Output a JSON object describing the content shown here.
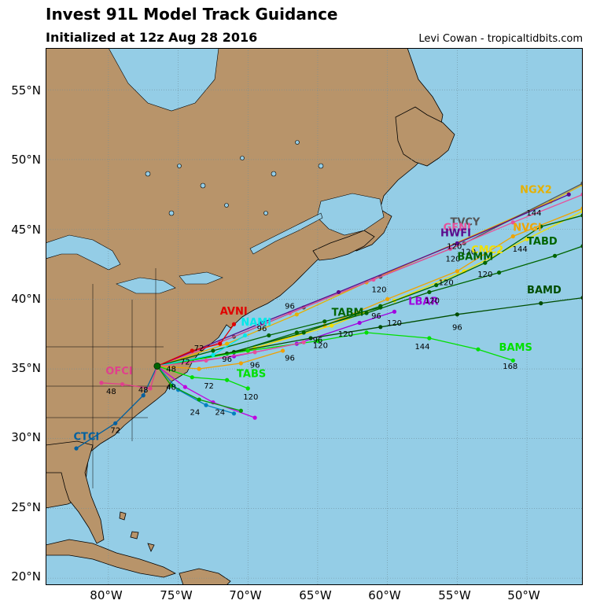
{
  "header": {
    "title": "Invest 91L Model Track Guidance",
    "subtitle": "Initialized at 12z Aug 28 2016",
    "credit": "Levi Cowan - tropicaltidbits.com"
  },
  "axes": {
    "lat_labels": [
      "55°N",
      "50°N",
      "45°N",
      "40°N",
      "35°N",
      "30°N",
      "25°N",
      "20°N"
    ],
    "lon_labels": [
      "80°W",
      "75°W",
      "70°W",
      "65°W",
      "60°W",
      "55°W",
      "50°W"
    ]
  },
  "colors": {
    "ocean": "#94cde6",
    "land": "#b8946a",
    "coast": "#000000",
    "grid": "#6f8f9c"
  },
  "chart_data": {
    "type": "map",
    "map_extent": {
      "lon": [
        -84.5,
        -46.0
      ],
      "lat": [
        19.5,
        58.0
      ]
    },
    "grid": true,
    "lat_ticks": [
      55,
      50,
      45,
      40,
      35,
      30,
      25,
      20
    ],
    "lon_ticks": [
      -80,
      -75,
      -70,
      -65,
      -60,
      -55,
      -50
    ],
    "origin": {
      "lon": -76.5,
      "lat": 35.2
    },
    "series": [
      {
        "name": "NGX2",
        "color": "#e6b000",
        "points": [
          [
            -76.5,
            35.2
          ],
          [
            -71.5,
            36.8
          ],
          [
            -66.5,
            38.9
          ],
          [
            -61.5,
            41.2
          ],
          [
            -48.3,
            47.0
          ],
          [
            -46.0,
            48.2
          ]
        ],
        "label": {
          "text": "NGX2",
          "lon": -50.5,
          "lat": 47.6
        },
        "hours": [
          {
            "text": "144",
            "lon": -49.5,
            "lat": 46.0
          }
        ]
      },
      {
        "name": "TVCY",
        "color": "#555555",
        "points": [
          [
            -76.5,
            35.2
          ],
          [
            -71.0,
            37.3
          ],
          [
            -66.0,
            39.4
          ],
          [
            -60.5,
            41.6
          ],
          [
            -54.5,
            44.0
          ],
          [
            -46.0,
            48.3
          ]
        ],
        "label": {
          "text": "TVCY",
          "lon": -55.5,
          "lat": 45.3
        },
        "hours": [
          {
            "text": "120",
            "lon": -54.2,
            "lat": 43.2
          }
        ]
      },
      {
        "name": "GFNI",
        "color": "#e8509a",
        "points": [
          [
            -76.5,
            35.2
          ],
          [
            -72.0,
            36.9
          ],
          [
            -67.0,
            39.0
          ],
          [
            -61.0,
            41.4
          ],
          [
            -55.5,
            43.6
          ],
          [
            -51.0,
            45.5
          ],
          [
            -46.0,
            47.5
          ]
        ],
        "label": {
          "text": "GFNI",
          "lon": -56.0,
          "lat": 44.9
        },
        "hours": []
      },
      {
        "name": "HWFI",
        "color": "#5a0a8c",
        "points": [
          [
            -76.5,
            35.2
          ],
          [
            -69.0,
            38.3
          ],
          [
            -63.5,
            40.5
          ],
          [
            -55.0,
            44.0
          ],
          [
            -47.0,
            47.5
          ]
        ],
        "label": {
          "text": "HWFI",
          "lon": -56.2,
          "lat": 44.5
        },
        "hours": [
          {
            "text": "120",
            "lon": -55.3,
            "lat": 42.7
          }
        ]
      },
      {
        "name": "NVGI",
        "color": "#f0a400",
        "points": [
          [
            -76.5,
            35.2
          ],
          [
            -70.0,
            36.3
          ],
          [
            -64.5,
            38.1
          ],
          [
            -60.0,
            40.0
          ],
          [
            -55.0,
            42.0
          ],
          [
            -51.0,
            44.5
          ],
          [
            -46.0,
            46.5
          ]
        ],
        "label": {
          "text": "NVGI",
          "lon": -51.0,
          "lat": 44.9
        },
        "hours": [
          {
            "text": "144",
            "lon": -50.5,
            "lat": 43.4
          }
        ]
      },
      {
        "name": "CMC2",
        "color": "#f0e000",
        "points": [
          [
            -76.5,
            35.2
          ],
          [
            -69.5,
            36.5
          ],
          [
            -64.0,
            38.1
          ],
          [
            -59.5,
            39.9
          ],
          [
            -54.5,
            42.0
          ],
          [
            -50.0,
            44.3
          ],
          [
            -46.0,
            46.3
          ]
        ],
        "label": {
          "text": "CMC2",
          "lon": -54.0,
          "lat": 43.3
        },
        "hours": []
      },
      {
        "name": "TABD",
        "color": "#006400",
        "points": [
          [
            -76.5,
            35.2
          ],
          [
            -71.5,
            36.1
          ],
          [
            -66.0,
            37.6
          ],
          [
            -60.5,
            39.5
          ],
          [
            -56.5,
            41.0
          ],
          [
            -53.0,
            42.6
          ],
          [
            -49.0,
            45.2
          ],
          [
            -46.0,
            46.0
          ]
        ],
        "label": {
          "text": "TABD",
          "lon": -50.0,
          "lat": 43.9
        },
        "hours": [
          {
            "text": "120",
            "lon": -53.0,
            "lat": 41.6
          }
        ]
      },
      {
        "name": "BAMM",
        "color": "#006400",
        "points": [
          [
            -76.5,
            35.2
          ],
          [
            -71.0,
            36.2
          ],
          [
            -66.5,
            37.6
          ],
          [
            -61.5,
            39.0
          ],
          [
            -57.0,
            40.5
          ],
          [
            -52.0,
            41.9
          ],
          [
            -48.0,
            43.1
          ],
          [
            -46.0,
            43.8
          ]
        ],
        "label": {
          "text": "BAMM",
          "lon": -55.0,
          "lat": 42.8
        },
        "hours": [
          {
            "text": "120",
            "lon": -55.8,
            "lat": 41.0
          }
        ]
      },
      {
        "name": "LBAR",
        "color": "#a000e0",
        "points": [
          [
            -76.5,
            35.2
          ],
          [
            -71.0,
            35.9
          ],
          [
            -66.5,
            36.8
          ],
          [
            -62.0,
            38.3
          ],
          [
            -59.5,
            39.1
          ]
        ],
        "label": {
          "text": "LBAR",
          "lon": -58.5,
          "lat": 39.6
        },
        "hours": [
          {
            "text": "120",
            "lon": -59.5,
            "lat": 38.1
          }
        ]
      },
      {
        "name": "TABM",
        "color": "#006400",
        "points": [
          [
            -76.5,
            35.2
          ],
          [
            -72.5,
            36.3
          ],
          [
            -68.5,
            37.4
          ],
          [
            -64.5,
            38.4
          ],
          [
            -60.5,
            39.4
          ]
        ],
        "label": {
          "text": "TABM",
          "lon": -64.0,
          "lat": 38.8
        },
        "hours": [
          {
            "text": "120",
            "lon": -63.0,
            "lat": 37.3
          }
        ]
      },
      {
        "name": "BAMD",
        "color": "#004d00",
        "points": [
          [
            -76.5,
            35.2
          ],
          [
            -71.0,
            36.2
          ],
          [
            -65.5,
            37.2
          ],
          [
            -60.5,
            38.0
          ],
          [
            -55.0,
            38.9
          ],
          [
            -49.0,
            39.7
          ],
          [
            -46.0,
            40.1
          ]
        ],
        "label": {
          "text": "BAMD",
          "lon": -50.0,
          "lat": 40.4
        },
        "hours": [
          {
            "text": "96",
            "lon": -55.0,
            "lat": 37.8
          }
        ]
      },
      {
        "name": "BAMS",
        "color": "#00e000",
        "points": [
          [
            -76.5,
            35.2
          ],
          [
            -70.0,
            36.3
          ],
          [
            -65.0,
            37.0
          ],
          [
            -61.5,
            37.6
          ],
          [
            -57.0,
            37.2
          ],
          [
            -53.5,
            36.4
          ],
          [
            -51.0,
            35.6
          ]
        ],
        "label": {
          "text": "BAMS",
          "lon": -52.0,
          "lat": 36.3
        },
        "hours": [
          {
            "text": "144",
            "lon": -57.5,
            "lat": 36.4
          },
          {
            "text": "168",
            "lon": -51.2,
            "lat": 35.0
          }
        ]
      },
      {
        "name": "AVNI",
        "color": "#e00000",
        "points": [
          [
            -76.5,
            35.2
          ],
          [
            -74.0,
            36.3
          ],
          [
            -72.0,
            36.8
          ],
          [
            -71.0,
            38.2
          ]
        ],
        "label": {
          "text": "AVNI",
          "lon": -72.0,
          "lat": 38.9
        },
        "hours": [
          {
            "text": "72",
            "lon": -73.5,
            "lat": 36.3
          }
        ]
      },
      {
        "name": "NAMI",
        "color": "#00e8e8",
        "points": [
          [
            -76.5,
            35.2
          ],
          [
            -72.5,
            36.0
          ],
          [
            -70.2,
            37.4
          ]
        ],
        "label": {
          "text": "NAMI",
          "lon": -70.5,
          "lat": 38.1
        },
        "hours": []
      },
      {
        "name": "TABS",
        "color": "#00e000",
        "points": [
          [
            -76.5,
            35.2
          ],
          [
            -74.0,
            34.4
          ],
          [
            -71.5,
            34.2
          ],
          [
            -70.0,
            33.6
          ]
        ],
        "label": {
          "text": "TABS",
          "lon": -70.8,
          "lat": 34.4
        },
        "hours": [
          {
            "text": "120",
            "lon": -69.8,
            "lat": 32.8
          },
          {
            "text": "72",
            "lon": -72.8,
            "lat": 33.6
          }
        ]
      },
      {
        "name": "CTCI",
        "color": "#0060a0",
        "points": [
          [
            -76.5,
            35.2
          ],
          [
            -77.5,
            33.1
          ],
          [
            -79.5,
            31.1
          ],
          [
            -82.3,
            29.3
          ]
        ],
        "label": {
          "text": "CTCI",
          "lon": -82.5,
          "lat": 29.9
        },
        "hours": [
          {
            "text": "72",
            "lon": -79.5,
            "lat": 30.4
          }
        ]
      },
      {
        "name": "OFCI",
        "color": "#e0408c",
        "points": [
          [
            -76.5,
            35.2
          ],
          [
            -77.0,
            33.6
          ],
          [
            -79.0,
            33.9
          ],
          [
            -80.5,
            34.0
          ]
        ],
        "label": {
          "text": "OFCI",
          "lon": -80.2,
          "lat": 34.6
        },
        "hours": [
          {
            "text": "48",
            "lon": -79.8,
            "lat": 33.2
          },
          {
            "text": "48",
            "lon": -77.5,
            "lat": 33.3
          }
        ]
      },
      {
        "name": "SOUTH-A",
        "color": "#c000e0",
        "points": [
          [
            -76.5,
            35.2
          ],
          [
            -74.5,
            33.7
          ],
          [
            -72.5,
            32.6
          ],
          [
            -69.5,
            31.5
          ]
        ],
        "label": null,
        "hours": [
          {
            "text": "24",
            "lon": -73.8,
            "lat": 31.7
          }
        ]
      },
      {
        "name": "SOUTH-B",
        "color": "#0080c0",
        "points": [
          [
            -76.5,
            35.2
          ],
          [
            -75.0,
            33.5
          ],
          [
            -73.0,
            32.4
          ],
          [
            -71.0,
            31.8
          ]
        ],
        "label": null,
        "hours": []
      },
      {
        "name": "SOUTH-C",
        "color": "#00a000",
        "points": [
          [
            -76.5,
            35.2
          ],
          [
            -75.5,
            33.8
          ],
          [
            -73.5,
            32.8
          ],
          [
            -70.5,
            32.0
          ]
        ],
        "label": null,
        "hours": []
      },
      {
        "name": "MID-A",
        "color": "#f0a000",
        "points": [
          [
            -76.5,
            35.2
          ],
          [
            -73.5,
            35.0
          ],
          [
            -70.5,
            35.4
          ],
          [
            -67.5,
            36.3
          ]
        ],
        "label": null,
        "hours": [
          {
            "text": "96",
            "lon": -67.0,
            "lat": 35.6
          },
          {
            "text": "96",
            "lon": -69.5,
            "lat": 35.1
          }
        ]
      },
      {
        "name": "MID-B",
        "color": "#e8509a",
        "points": [
          [
            -76.5,
            35.2
          ],
          [
            -73.0,
            35.6
          ],
          [
            -69.5,
            36.2
          ],
          [
            -66.0,
            36.9
          ]
        ],
        "label": null,
        "hours": [
          {
            "text": "96",
            "lon": -71.5,
            "lat": 35.5
          },
          {
            "text": "72",
            "lon": -74.5,
            "lat": 35.3
          }
        ]
      }
    ],
    "extra_hour_labels": [
      {
        "text": "96",
        "lon": -67.0,
        "lat": 39.3
      },
      {
        "text": "96",
        "lon": -69.0,
        "lat": 37.7
      },
      {
        "text": "96",
        "lon": -60.8,
        "lat": 38.6
      },
      {
        "text": "96",
        "lon": -65.0,
        "lat": 36.9
      },
      {
        "text": "120",
        "lon": -60.6,
        "lat": 40.5
      },
      {
        "text": "120",
        "lon": -55.2,
        "lat": 43.6
      },
      {
        "text": "120",
        "lon": -64.8,
        "lat": 36.5
      },
      {
        "text": "120",
        "lon": -56.8,
        "lat": 39.7
      },
      {
        "text": "48",
        "lon": -75.5,
        "lat": 34.8
      },
      {
        "text": "48",
        "lon": -75.5,
        "lat": 33.5
      },
      {
        "text": "24",
        "lon": -72.0,
        "lat": 31.7
      }
    ]
  }
}
